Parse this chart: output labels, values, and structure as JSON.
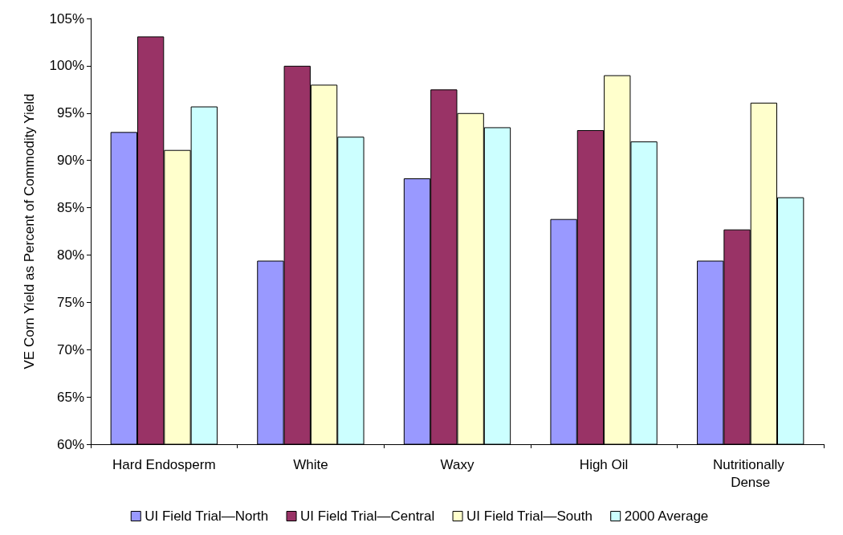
{
  "chart_data": {
    "type": "bar",
    "ylabel": "VE Corn Yield as Percent of Commodity Yield",
    "categories": [
      "Hard Endosperm",
      "White",
      "Waxy",
      "High Oil",
      "Nutritionally Dense"
    ],
    "series": [
      {
        "name": "UI Field Trial—North",
        "color": "#9999ff",
        "values": [
          93,
          79.4,
          88.1,
          83.8,
          79.4
        ]
      },
      {
        "name": "UI Field Trial—Central",
        "color": "#993366",
        "values": [
          103.1,
          100,
          97.5,
          93.2,
          82.7
        ]
      },
      {
        "name": "UI Field Trial—South",
        "color": "#ffffcc",
        "values": [
          91.1,
          98,
          95,
          99,
          96.1
        ]
      },
      {
        "name": "2000 Average",
        "color": "#ccffff",
        "values": [
          95.7,
          92.5,
          93.5,
          92,
          86.1
        ]
      }
    ],
    "ylim": [
      60,
      105
    ],
    "yticks": [
      {
        "value": 60,
        "label": "60%"
      },
      {
        "value": 65,
        "label": "65%"
      },
      {
        "value": 70,
        "label": "70%"
      },
      {
        "value": 75,
        "label": "75%"
      },
      {
        "value": 80,
        "label": "80%"
      },
      {
        "value": 85,
        "label": "85%"
      },
      {
        "value": 90,
        "label": "90%"
      },
      {
        "value": 95,
        "label": "95%"
      },
      {
        "value": 100,
        "label": "100%"
      },
      {
        "value": 105,
        "label": "105%"
      }
    ],
    "grid": false,
    "legend": "bottom"
  }
}
